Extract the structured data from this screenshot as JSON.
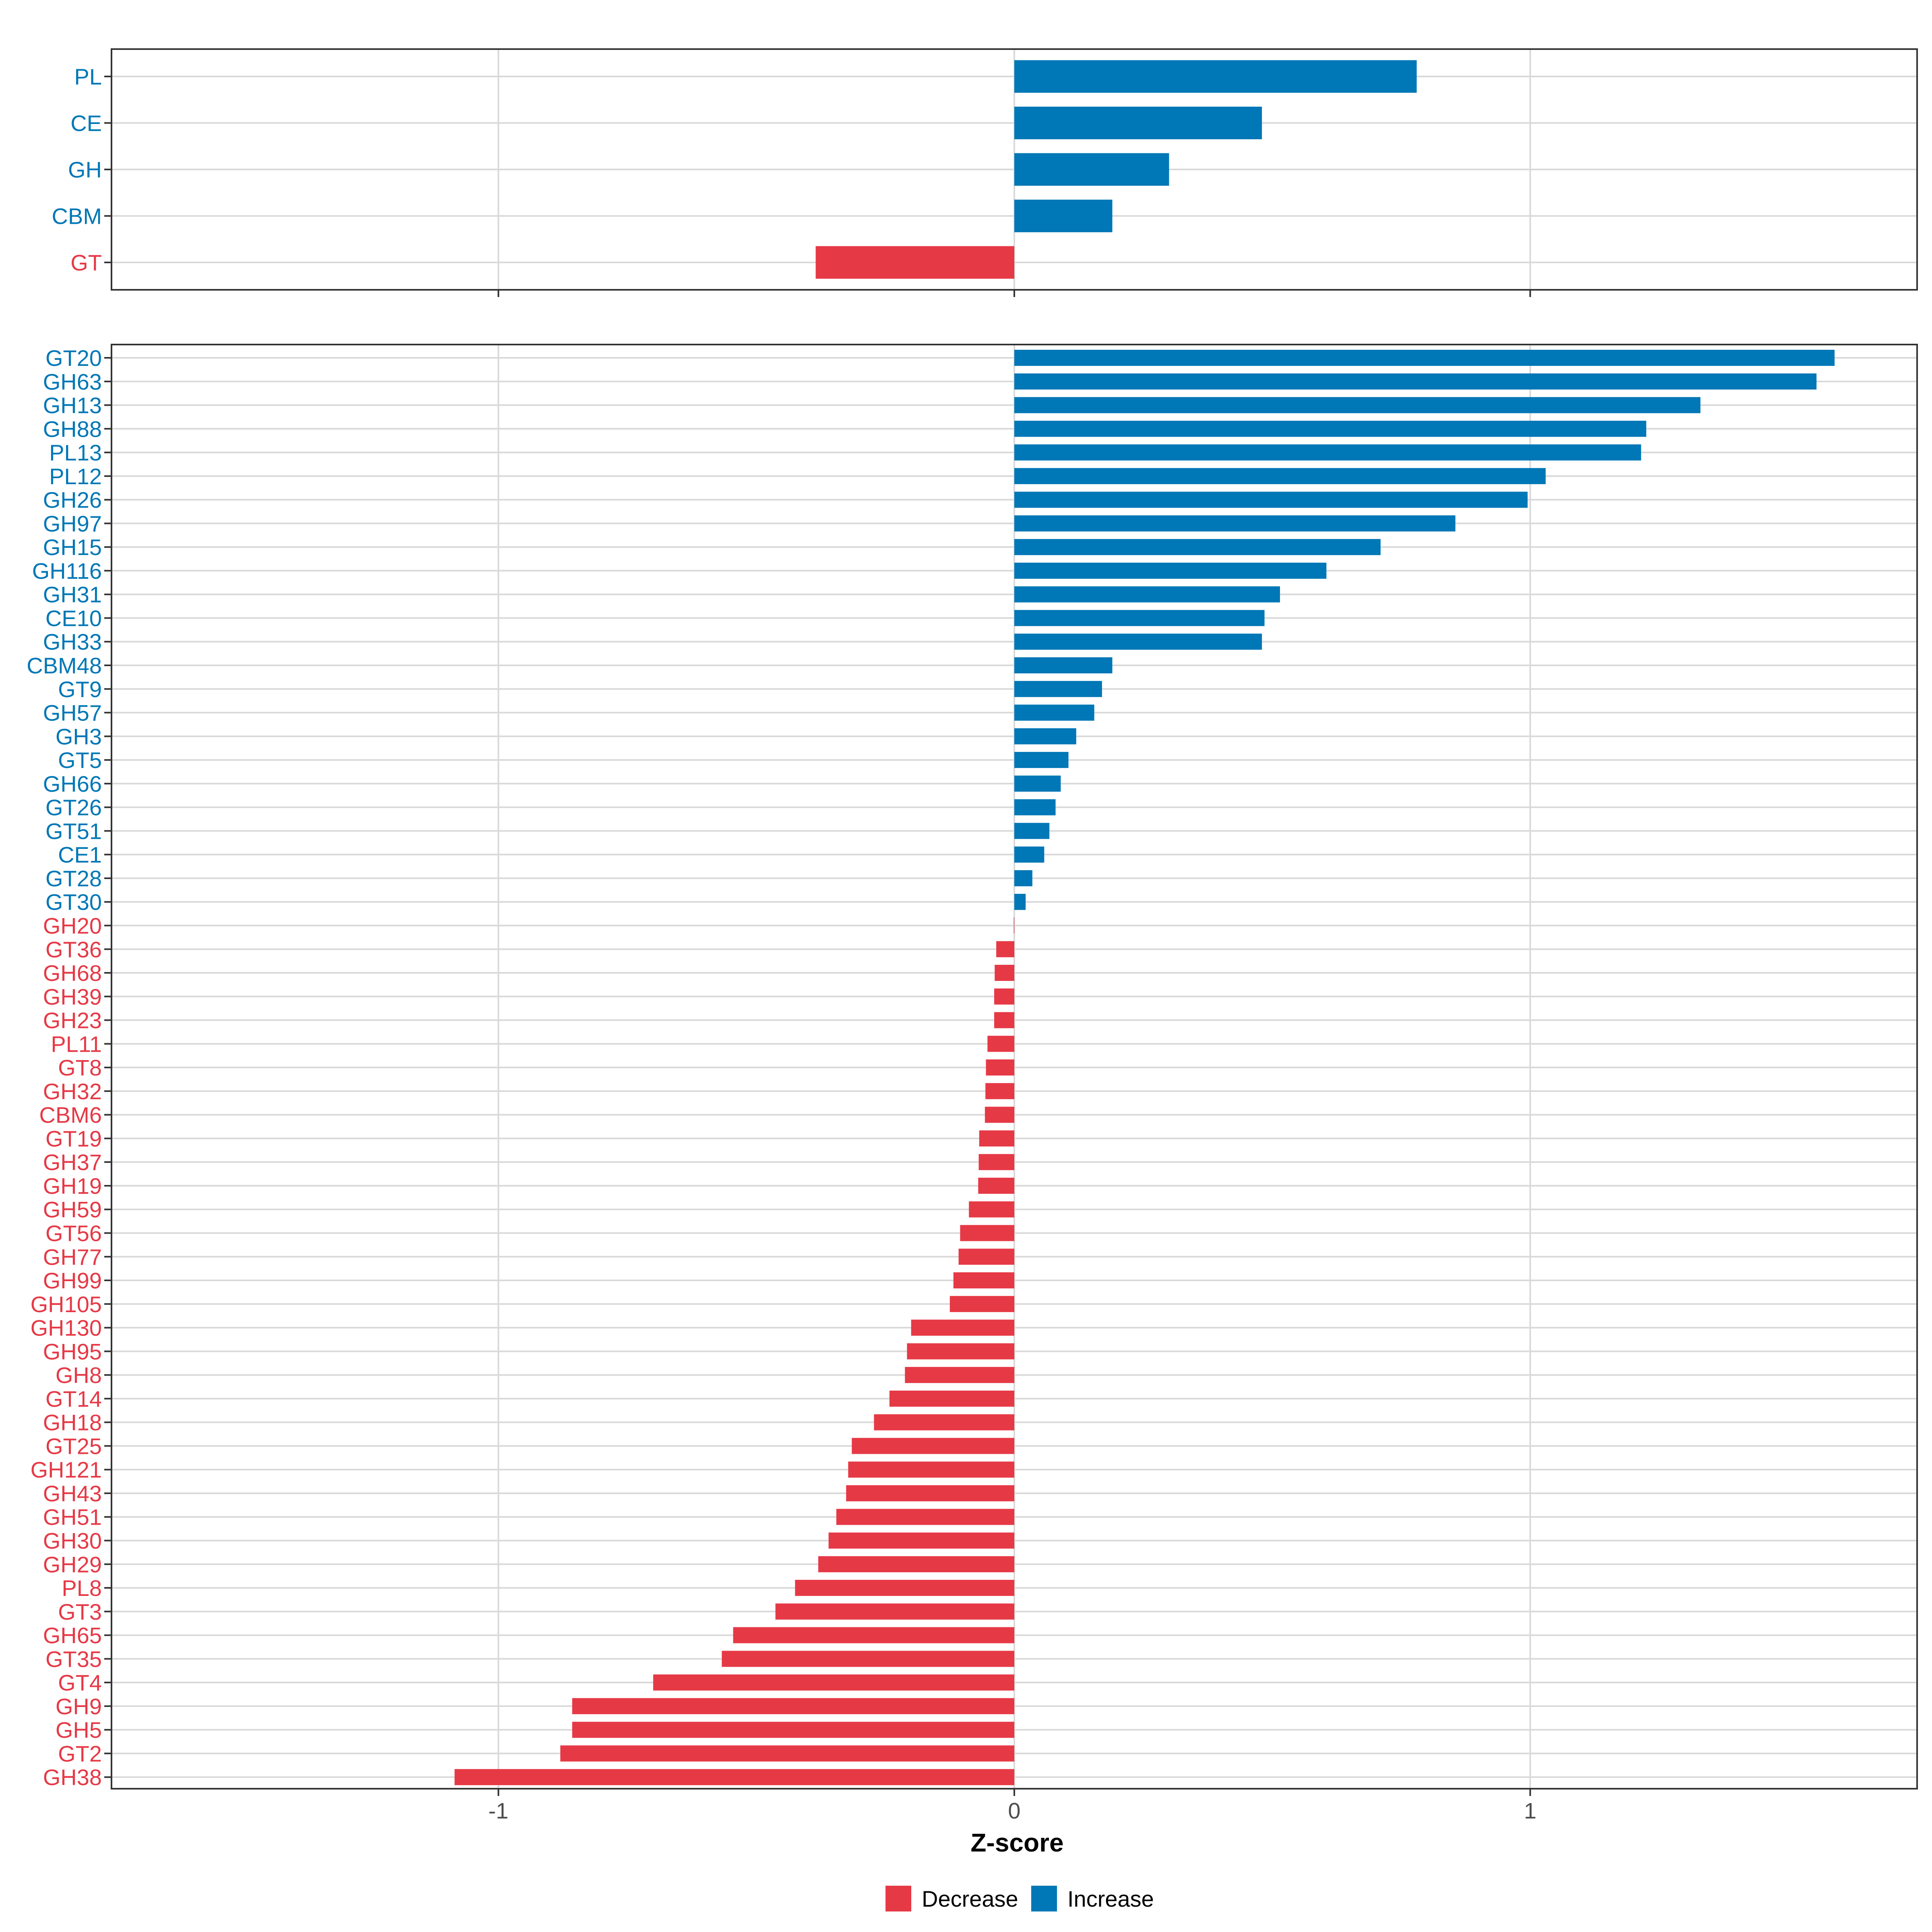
{
  "colors": {
    "increase": "#0077B6",
    "decrease": "#E63946",
    "grid": "#d9d9d9",
    "panel_border": "#333333",
    "tick_text": "#4d4d4d"
  },
  "chart_data": [
    {
      "type": "bar",
      "orientation": "horizontal",
      "panel": "top",
      "categories": [
        "PL",
        "CE",
        "GH",
        "CBM",
        "GT"
      ],
      "values": [
        0.78,
        0.48,
        0.3,
        0.19,
        -0.385
      ],
      "xlim": [
        -1.75,
        1.75
      ],
      "grid": true
    },
    {
      "type": "bar",
      "orientation": "horizontal",
      "panel": "bottom",
      "categories": [
        "GT20",
        "GH63",
        "GH13",
        "GH88",
        "PL13",
        "PL12",
        "GH26",
        "GH97",
        "GH15",
        "GH116",
        "GH31",
        "CE10",
        "GH33",
        "CBM48",
        "GT9",
        "GH57",
        "GH3",
        "GT5",
        "GH66",
        "GT26",
        "GT51",
        "CE1",
        "GT28",
        "GT30",
        "GH20",
        "GT36",
        "GH68",
        "GH39",
        "GH23",
        "PL11",
        "GT8",
        "GH32",
        "CBM6",
        "GT19",
        "GH37",
        "GH19",
        "GH59",
        "GT56",
        "GH77",
        "GH99",
        "GH105",
        "GH130",
        "GH95",
        "GH8",
        "GT14",
        "GH18",
        "GT25",
        "GH121",
        "GH43",
        "GH51",
        "GH30",
        "GH29",
        "PL8",
        "GT3",
        "GH65",
        "GT35",
        "GT4",
        "GH9",
        "GH5",
        "GT2",
        "GH38"
      ],
      "values": [
        1.59,
        1.555,
        1.33,
        1.225,
        1.215,
        1.03,
        0.995,
        0.855,
        0.71,
        0.605,
        0.515,
        0.485,
        0.48,
        0.19,
        0.17,
        0.155,
        0.12,
        0.105,
        0.09,
        0.08,
        0.068,
        0.058,
        0.035,
        0.022,
        -0.001,
        -0.035,
        -0.038,
        -0.039,
        -0.039,
        -0.052,
        -0.055,
        -0.056,
        -0.057,
        -0.068,
        -0.069,
        -0.07,
        -0.088,
        -0.105,
        -0.108,
        -0.118,
        -0.125,
        -0.2,
        -0.208,
        -0.212,
        -0.242,
        -0.272,
        -0.315,
        -0.322,
        -0.326,
        -0.345,
        -0.36,
        -0.38,
        -0.425,
        -0.463,
        -0.545,
        -0.567,
        -0.7,
        -0.857,
        -0.857,
        -0.88,
        -1.085
      ],
      "xlim": [
        -1.75,
        1.75
      ],
      "xticks": [
        -1,
        0,
        1
      ],
      "xtick_labels": [
        "-1",
        "0",
        "1"
      ],
      "xlabel": "Z-score",
      "grid": true
    }
  ],
  "legend": {
    "position": "bottom",
    "items": [
      {
        "label": "Decrease",
        "color_key": "decrease"
      },
      {
        "label": "Increase",
        "color_key": "increase"
      }
    ]
  }
}
